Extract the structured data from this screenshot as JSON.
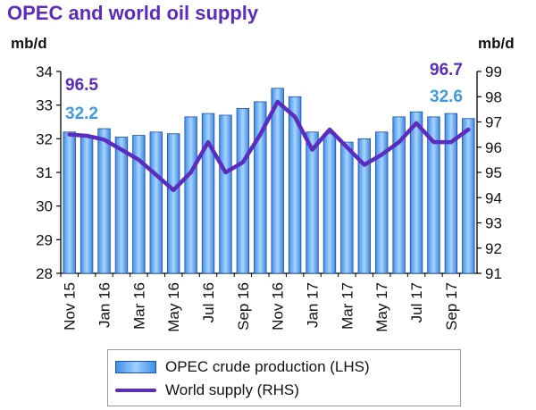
{
  "title": "OPEC and world oil supply",
  "chart_data": {
    "type": "bar",
    "categories": [
      "Nov 15",
      "Dec 15",
      "Jan 16",
      "Feb 16",
      "Mar 16",
      "Apr 16",
      "May 16",
      "Jun 16",
      "Jul 16",
      "Aug 16",
      "Sep 16",
      "Oct 16",
      "Nov 16",
      "Dec 16",
      "Jan 17",
      "Feb 17",
      "Mar 17",
      "Apr 17",
      "May 17",
      "Jun 17",
      "Jul 17",
      "Aug 17",
      "Sep 17",
      "Oct 17"
    ],
    "tick_labels": [
      "Nov 15",
      "",
      "Jan 16",
      "",
      "Mar 16",
      "",
      "May 16",
      "",
      "Jul 16",
      "",
      "Sep 16",
      "",
      "Nov 16",
      "",
      "Jan 17",
      "",
      "Mar 17",
      "",
      "May 17",
      "",
      "Jul 17",
      "",
      "Sep 17",
      ""
    ],
    "left_unit": "mb/d",
    "right_unit": "mb/d",
    "ylim_left": [
      28,
      34
    ],
    "ylim_right": [
      91,
      99
    ],
    "yticks_left": [
      28,
      29,
      30,
      31,
      32,
      33,
      34
    ],
    "yticks_right": [
      91,
      92,
      93,
      94,
      95,
      96,
      97,
      98,
      99
    ],
    "series": [
      {
        "name": "OPEC crude production (LHS)",
        "kind": "bar",
        "axis": "left",
        "color": "#3f8fe6",
        "values": [
          32.2,
          32.1,
          32.3,
          32.05,
          32.1,
          32.2,
          32.15,
          32.65,
          32.75,
          32.7,
          32.9,
          33.1,
          33.5,
          33.25,
          32.2,
          32.15,
          31.9,
          32.0,
          32.2,
          32.65,
          32.8,
          32.65,
          32.75,
          32.6
        ]
      },
      {
        "name": "World supply (RHS)",
        "kind": "line",
        "axis": "right",
        "color": "#5b2cbf",
        "values": [
          96.5,
          96.45,
          96.3,
          95.9,
          95.5,
          94.9,
          94.3,
          95.0,
          96.2,
          95.0,
          95.4,
          96.5,
          97.8,
          97.2,
          95.9,
          96.7,
          96.0,
          95.3,
          95.7,
          96.2,
          96.95,
          96.2,
          96.2,
          96.7
        ]
      }
    ],
    "annotations": [
      {
        "text": "96.5",
        "color": "#5b2cbf"
      },
      {
        "text": "32.2",
        "color": "#3f9be0"
      },
      {
        "text": "96.7",
        "color": "#5b2cbf"
      },
      {
        "text": "32.6",
        "color": "#3f9be0"
      }
    ],
    "legend": [
      {
        "label": "OPEC crude production (LHS)",
        "kind": "bar"
      },
      {
        "label": "World supply (RHS)",
        "kind": "line"
      }
    ],
    "legend_position": "bottom",
    "grid": false
  }
}
